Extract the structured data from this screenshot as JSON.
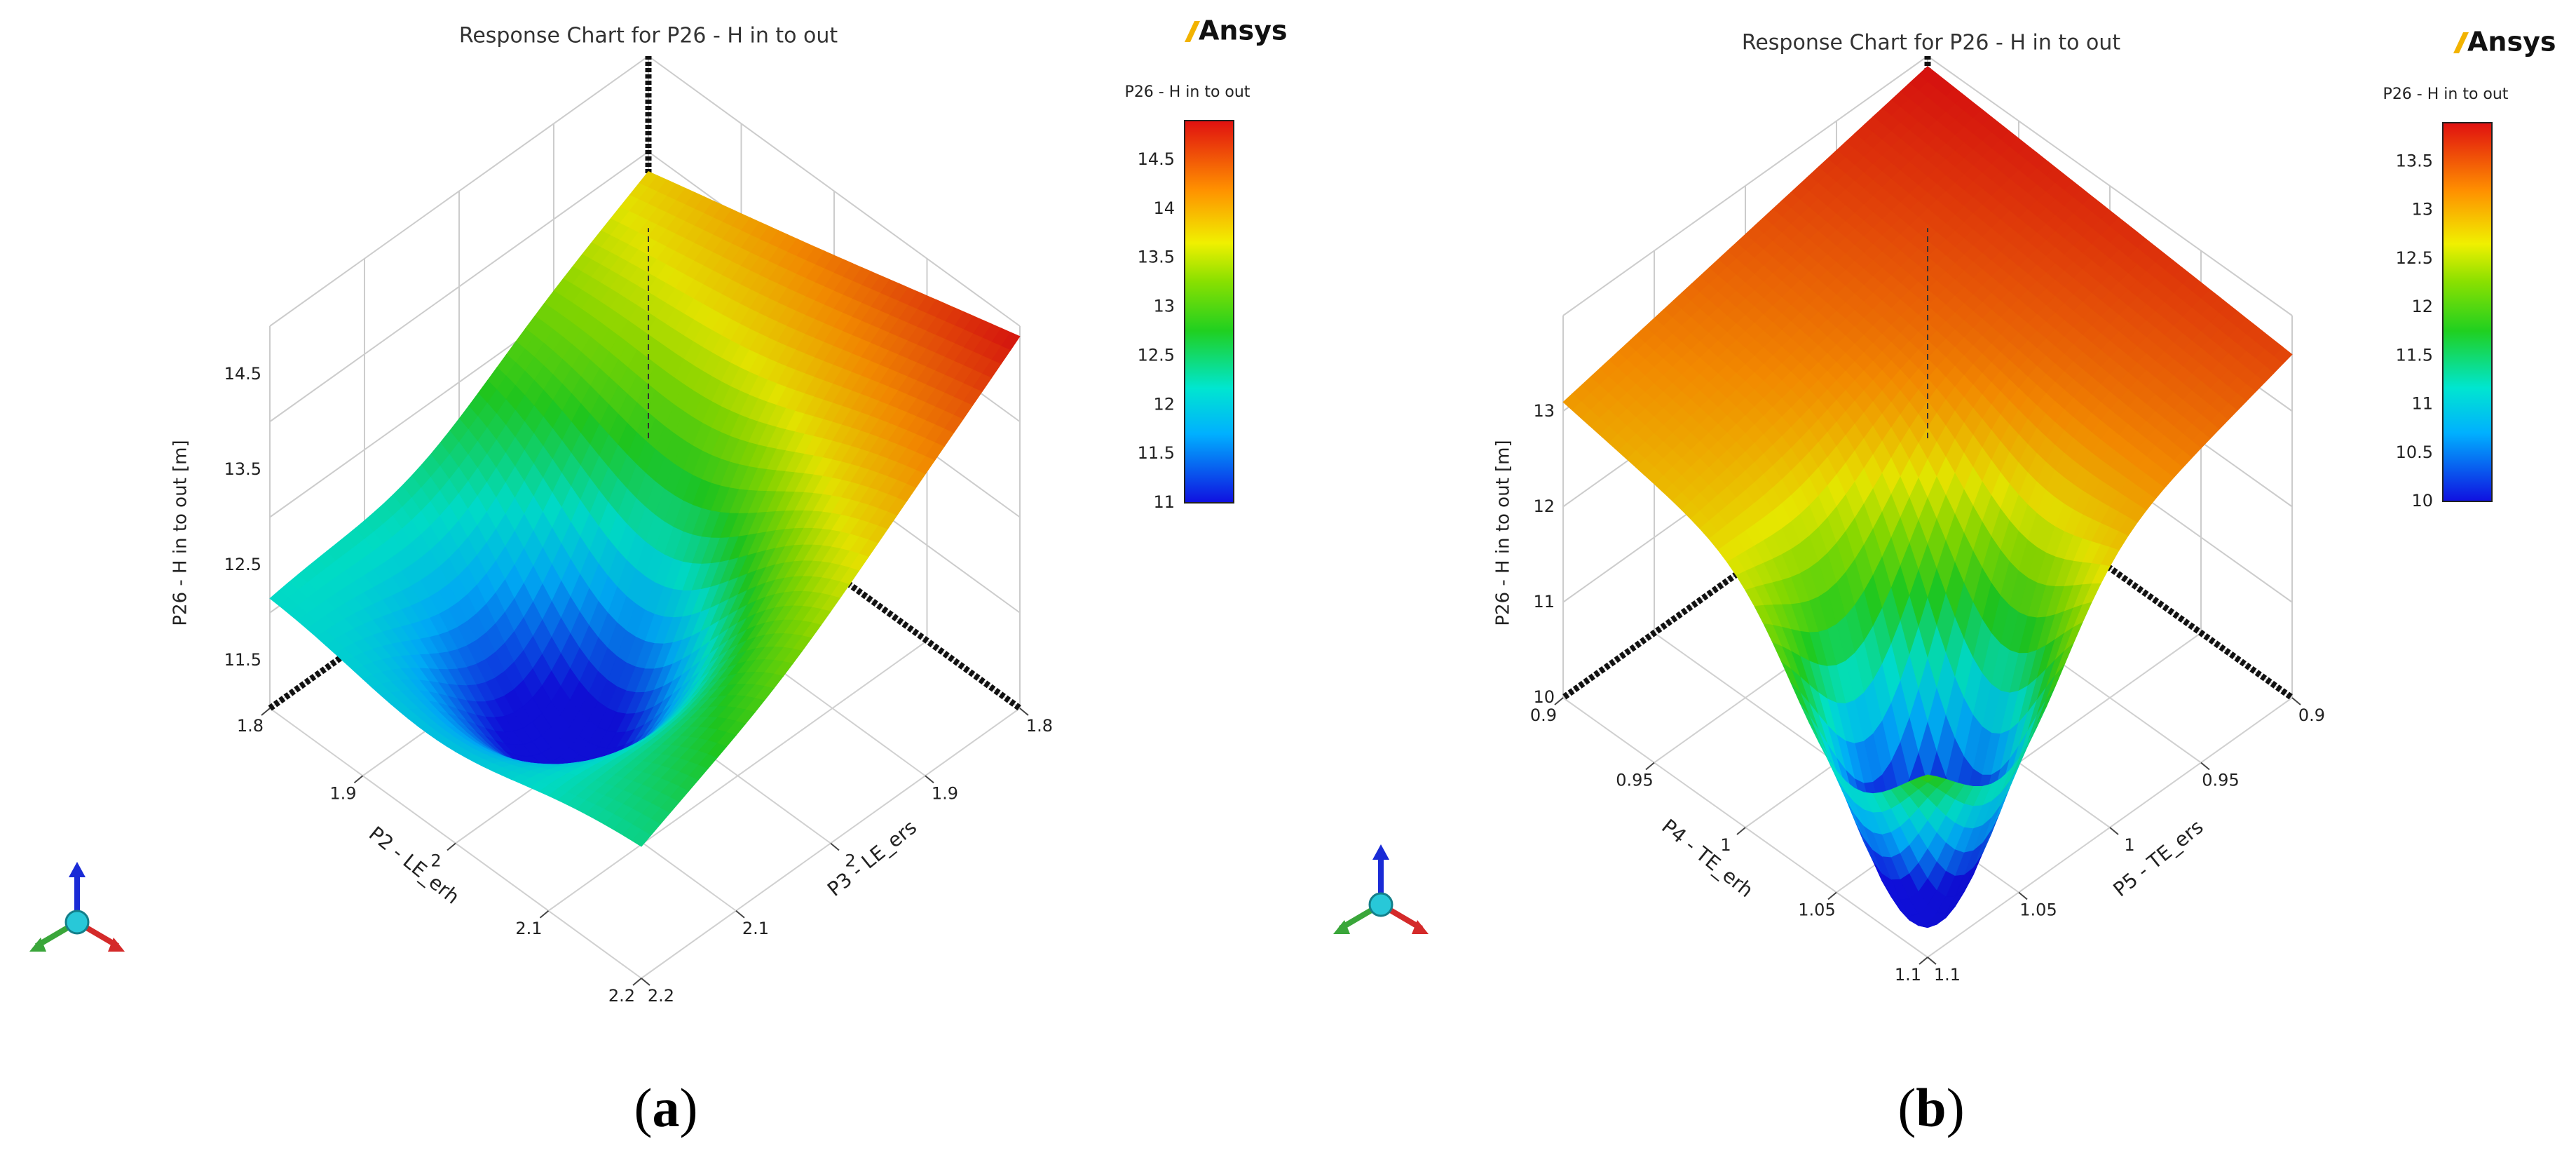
{
  "brand": {
    "logo_text": "Ansys",
    "logo_accent": "#f2b300"
  },
  "panels": [
    {
      "tag": "a"
    },
    {
      "tag": "b"
    }
  ],
  "chart_data": [
    {
      "type": "surface3d",
      "title": "Response Chart for P26 - H in to out",
      "legend_title": "P26 - H in to out",
      "xlabel": "P2 - LE_erh",
      "ylabel": "P3 - LE_ers",
      "zlabel": "P26 - H in to out  [m]",
      "xlim": [
        1.8,
        2.2
      ],
      "ylim": [
        1.8,
        2.2
      ],
      "zlim": [
        11,
        15
      ],
      "x_ticks": [
        "1.8",
        "1.9",
        "2",
        "2.1",
        "2.2"
      ],
      "y_ticks": [
        "1.8",
        "1.9",
        "2",
        "2.1",
        "2.2"
      ],
      "z_ticks": [
        "11.5",
        "12.5",
        "13.5",
        "14.5"
      ],
      "colorbar_ticks": [
        "14.5",
        "14",
        "13.5",
        "13",
        "12.5",
        "12",
        "11.5",
        "11"
      ],
      "colorbar_range": [
        11,
        14.9
      ],
      "corners": {
        "x1.8_y1.8": 13.8,
        "x1.8_y2.2": 14.9,
        "x2.2_y1.8": 11.7,
        "x2.2_y2.2": 11.9
      },
      "minimum": {
        "x": 2.0,
        "y": 2.05,
        "z": 11.0
      }
    },
    {
      "type": "surface3d",
      "title": "Response Chart for P26 - H in to out",
      "legend_title": "P26 - H in to out",
      "xlabel": "P4 - TE_erh",
      "ylabel": "P5 - TE_ers",
      "zlabel": "P26 - H in to out  [m]",
      "xlim": [
        0.9,
        1.1
      ],
      "ylim": [
        0.9,
        1.1
      ],
      "zlim": [
        10,
        14
      ],
      "x_ticks": [
        "0.9",
        "0.95",
        "1",
        "1.05",
        "1.1"
      ],
      "y_ticks": [
        "0.9",
        "0.95",
        "1",
        "1.05",
        "1.1"
      ],
      "z_ticks": [
        "10",
        "11",
        "12",
        "13"
      ],
      "colorbar_ticks": [
        "13.5",
        "13",
        "12.5",
        "12",
        "11.5",
        "11",
        "10.5",
        "10"
      ],
      "colorbar_range": [
        10,
        13.9
      ],
      "corners": {
        "x0.9_y0.9": 13.9,
        "x0.9_y1.1": 13.6,
        "x1.1_y0.9": 13.1,
        "x1.1_y1.1": 10.3
      },
      "minimum": {
        "x": 1.05,
        "y": 1.05,
        "z": 10.0
      }
    }
  ]
}
